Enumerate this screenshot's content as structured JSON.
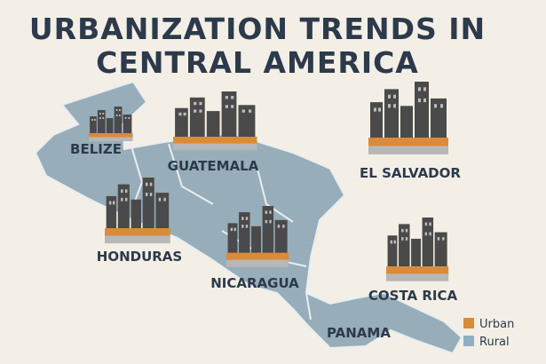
{
  "title": [
    "URBANIZATION TRENDS IN",
    "CENTRAL AMERICA"
  ],
  "countries": [
    "BELIZE",
    "GUATEMALA",
    "EL SALVADOR",
    "HONDURAS",
    "NICARAGUA",
    "COSTA RICA",
    "PANAMA"
  ],
  "legend": [
    {
      "label": "Urban",
      "color": "#d98b3a"
    },
    {
      "label": "Rural",
      "color": "#8fb0c4"
    }
  ]
}
